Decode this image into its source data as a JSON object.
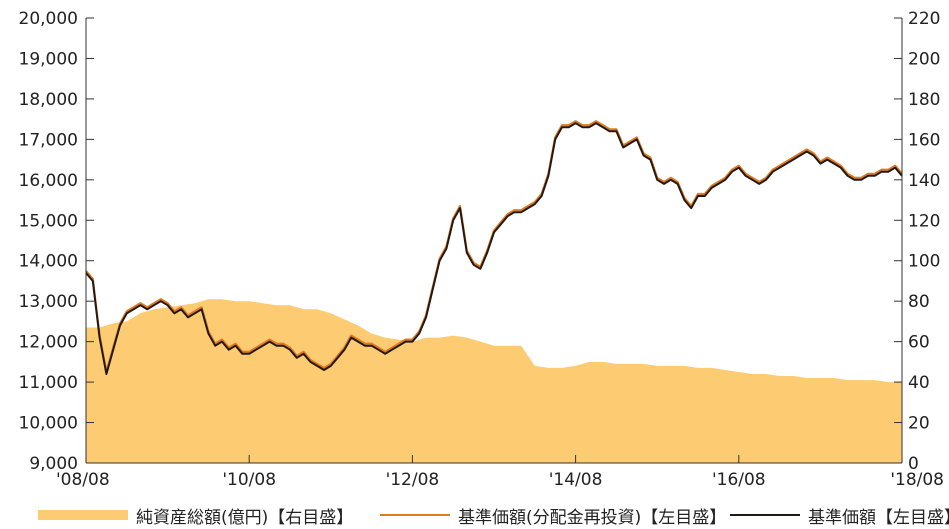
{
  "chart_data": {
    "type": "line",
    "title": "",
    "xlabel": "",
    "x_ticks": [
      "'08/08",
      "'10/08",
      "'12/08",
      "'14/08",
      "'16/08",
      "'18/08"
    ],
    "x_range": [
      "2008-08",
      "2018-08"
    ],
    "y_left": {
      "range": [
        9000,
        20000
      ],
      "ticks": [
        "9,000",
        "10,000",
        "11,000",
        "12,000",
        "13,000",
        "14,000",
        "15,000",
        "16,000",
        "17,000",
        "18,000",
        "19,000",
        "20,000"
      ]
    },
    "y_right": {
      "range": [
        0,
        220
      ],
      "ticks": [
        "0",
        "20",
        "40",
        "60",
        "80",
        "100",
        "120",
        "140",
        "160",
        "180",
        "200",
        "220"
      ]
    },
    "grid": false,
    "legend_position": "bottom",
    "series": [
      {
        "name": "純資産総額(億円)【右目盛】",
        "type": "area",
        "axis": "right",
        "color": "#fccb72",
        "x": [
          "2008-08",
          "2008-10",
          "2008-12",
          "2009-02",
          "2009-04",
          "2009-06",
          "2009-08",
          "2009-10",
          "2009-12",
          "2010-02",
          "2010-04",
          "2010-06",
          "2010-08",
          "2010-10",
          "2010-12",
          "2011-02",
          "2011-04",
          "2011-06",
          "2011-08",
          "2011-10",
          "2011-12",
          "2012-02",
          "2012-04",
          "2012-06",
          "2012-08",
          "2012-10",
          "2012-12",
          "2013-02",
          "2013-04",
          "2013-06",
          "2013-08",
          "2013-10",
          "2013-12",
          "2014-02",
          "2014-04",
          "2014-06",
          "2014-08",
          "2014-10",
          "2014-12",
          "2015-02",
          "2015-04",
          "2015-06",
          "2015-08",
          "2015-10",
          "2015-12",
          "2016-02",
          "2016-04",
          "2016-06",
          "2016-08",
          "2016-10",
          "2016-12",
          "2017-02",
          "2017-04",
          "2017-06",
          "2017-08",
          "2017-10",
          "2017-12",
          "2018-02",
          "2018-04",
          "2018-06",
          "2018-08"
        ],
        "values": [
          67,
          67,
          69,
          70,
          74,
          76,
          77,
          78,
          79,
          81,
          81,
          80,
          80,
          79,
          78,
          78,
          76,
          76,
          74,
          71,
          68,
          64,
          62,
          61,
          60,
          62,
          62,
          63,
          62,
          60,
          58,
          58,
          58,
          48,
          47,
          47,
          48,
          50,
          50,
          49,
          49,
          49,
          48,
          48,
          48,
          47,
          47,
          46,
          45,
          44,
          44,
          43,
          43,
          42,
          42,
          42,
          41,
          41,
          41,
          40,
          40
        ]
      },
      {
        "name": "基準価額(分配金再投資)【左目盛】",
        "type": "line",
        "axis": "left",
        "color": "#e07a1f",
        "x": [
          "2008-08",
          "2008-09",
          "2008-10",
          "2008-11",
          "2008-12",
          "2009-01",
          "2009-02",
          "2009-03",
          "2009-04",
          "2009-05",
          "2009-06",
          "2009-07",
          "2009-08",
          "2009-09",
          "2009-10",
          "2009-11",
          "2009-12",
          "2010-01",
          "2010-02",
          "2010-03",
          "2010-04",
          "2010-05",
          "2010-06",
          "2010-07",
          "2010-08",
          "2010-09",
          "2010-10",
          "2010-11",
          "2010-12",
          "2011-01",
          "2011-02",
          "2011-03",
          "2011-04",
          "2011-05",
          "2011-06",
          "2011-07",
          "2011-08",
          "2011-09",
          "2011-10",
          "2011-11",
          "2011-12",
          "2012-01",
          "2012-02",
          "2012-03",
          "2012-04",
          "2012-05",
          "2012-06",
          "2012-07",
          "2012-08",
          "2012-09",
          "2012-10",
          "2012-11",
          "2012-12",
          "2013-01",
          "2013-02",
          "2013-03",
          "2013-04",
          "2013-05",
          "2013-06",
          "2013-07",
          "2013-08",
          "2013-09",
          "2013-10",
          "2013-11",
          "2013-12",
          "2014-01",
          "2014-02",
          "2014-03",
          "2014-04",
          "2014-05",
          "2014-06",
          "2014-07",
          "2014-08",
          "2014-09",
          "2014-10",
          "2014-11",
          "2014-12",
          "2015-01",
          "2015-02",
          "2015-03",
          "2015-04",
          "2015-05",
          "2015-06",
          "2015-07",
          "2015-08",
          "2015-09",
          "2015-10",
          "2015-11",
          "2015-12",
          "2016-01",
          "2016-02",
          "2016-03",
          "2016-04",
          "2016-05",
          "2016-06",
          "2016-07",
          "2016-08",
          "2016-09",
          "2016-10",
          "2016-11",
          "2016-12",
          "2017-01",
          "2017-02",
          "2017-03",
          "2017-04",
          "2017-05",
          "2017-06",
          "2017-07",
          "2017-08",
          "2017-09",
          "2017-10",
          "2017-11",
          "2017-12",
          "2018-01",
          "2018-02",
          "2018-03",
          "2018-04",
          "2018-05",
          "2018-06",
          "2018-07",
          "2018-08"
        ],
        "values": [
          13700,
          13500,
          12100,
          11200,
          11800,
          12400,
          12700,
          12800,
          12900,
          12800,
          12900,
          13000,
          12900,
          12700,
          12800,
          12600,
          12700,
          12800,
          12200,
          11900,
          12000,
          11800,
          11900,
          11700,
          11700,
          11800,
          11900,
          12000,
          11900,
          11900,
          11800,
          11600,
          11700,
          11500,
          11400,
          11300,
          11400,
          11600,
          11800,
          12100,
          12000,
          11900,
          11900,
          11800,
          11700,
          11800,
          11900,
          12000,
          12000,
          12200,
          12600,
          13300,
          14000,
          14300,
          15000,
          15300,
          14200,
          13900,
          13800,
          14200,
          14700,
          14900,
          15100,
          15200,
          15200,
          15300,
          15400,
          15600,
          16100,
          17000,
          17300,
          17300,
          17400,
          17300,
          17300,
          17400,
          17300,
          17200,
          17200,
          16800,
          16900,
          17000,
          16600,
          16500,
          16000,
          15900,
          16000,
          15900,
          15500,
          15300,
          15600,
          15600,
          15800,
          15900,
          16000,
          16200,
          16300,
          16100,
          16000,
          15900,
          16000,
          16200,
          16300,
          16400,
          16500,
          16600,
          16700,
          16600,
          16400,
          16500,
          16400,
          16300,
          16100,
          16000,
          16000,
          16100,
          16100,
          16200,
          16200,
          16300,
          16100
        ],
        "note": ""
      },
      {
        "name": "基準価額【左目盛】",
        "type": "line",
        "axis": "left",
        "color": "#231815",
        "x": [
          "2008-08",
          "2008-09",
          "2008-10",
          "2008-11",
          "2008-12",
          "2009-01",
          "2009-02",
          "2009-03",
          "2009-04",
          "2009-05",
          "2009-06",
          "2009-07",
          "2009-08",
          "2009-09",
          "2009-10",
          "2009-11",
          "2009-12",
          "2010-01",
          "2010-02",
          "2010-03",
          "2010-04",
          "2010-05",
          "2010-06",
          "2010-07",
          "2010-08",
          "2010-09",
          "2010-10",
          "2010-11",
          "2010-12",
          "2011-01",
          "2011-02",
          "2011-03",
          "2011-04",
          "2011-05",
          "2011-06",
          "2011-07",
          "2011-08",
          "2011-09",
          "2011-10",
          "2011-11",
          "2011-12",
          "2012-01",
          "2012-02",
          "2012-03",
          "2012-04",
          "2012-05",
          "2012-06",
          "2012-07",
          "2012-08",
          "2012-09",
          "2012-10",
          "2012-11",
          "2012-12",
          "2013-01",
          "2013-02",
          "2013-03",
          "2013-04",
          "2013-05",
          "2013-06",
          "2013-07",
          "2013-08",
          "2013-09",
          "2013-10",
          "2013-11",
          "2013-12",
          "2014-01",
          "2014-02",
          "2014-03",
          "2014-04",
          "2014-05",
          "2014-06",
          "2014-07",
          "2014-08",
          "2014-09",
          "2014-10",
          "2014-11",
          "2014-12",
          "2015-01",
          "2015-02",
          "2015-03",
          "2015-04",
          "2015-05",
          "2015-06",
          "2015-07",
          "2015-08",
          "2015-09",
          "2015-10",
          "2015-11",
          "2015-12",
          "2016-01",
          "2016-02",
          "2016-03",
          "2016-04",
          "2016-05",
          "2016-06",
          "2016-07",
          "2016-08",
          "2016-09",
          "2016-10",
          "2016-11",
          "2016-12",
          "2017-01",
          "2017-02",
          "2017-03",
          "2017-04",
          "2017-05",
          "2017-06",
          "2017-07",
          "2017-08",
          "2017-09",
          "2017-10",
          "2017-11",
          "2017-12",
          "2018-01",
          "2018-02",
          "2018-03",
          "2018-04",
          "2018-05",
          "2018-06",
          "2018-07",
          "2018-08"
        ],
        "values": [
          13700,
          13500,
          12100,
          11200,
          11800,
          12400,
          12700,
          12800,
          12900,
          12800,
          12900,
          13000,
          12900,
          12700,
          12800,
          12600,
          12700,
          12800,
          12200,
          11900,
          12000,
          11800,
          11900,
          11700,
          11700,
          11800,
          11900,
          12000,
          11900,
          11900,
          11800,
          11600,
          11700,
          11500,
          11400,
          11300,
          11400,
          11600,
          11800,
          12100,
          12000,
          11900,
          11900,
          11800,
          11700,
          11800,
          11900,
          12000,
          12000,
          12200,
          12600,
          13300,
          14000,
          14300,
          15000,
          15300,
          14200,
          13900,
          13800,
          14200,
          14700,
          14900,
          15100,
          15200,
          15200,
          15300,
          15400,
          15600,
          16100,
          17000,
          17300,
          17300,
          17400,
          17300,
          17300,
          17400,
          17300,
          17200,
          17200,
          16800,
          16900,
          17000,
          16600,
          16500,
          16000,
          15900,
          16000,
          15900,
          15500,
          15300,
          15600,
          15600,
          15800,
          15900,
          16000,
          16200,
          16300,
          16100,
          16000,
          15900,
          16000,
          16200,
          16300,
          16400,
          16500,
          16600,
          16700,
          16600,
          16400,
          16500,
          16400,
          16300,
          16100,
          16000,
          16000,
          16100,
          16100,
          16200,
          16200,
          16300,
          16100
        ]
      }
    ]
  }
}
